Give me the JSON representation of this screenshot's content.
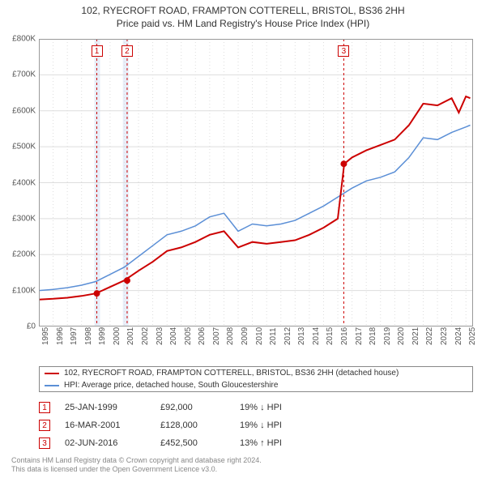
{
  "title_line1": "102, RYECROFT ROAD, FRAMPTON COTTERELL, BRISTOL, BS36 2HH",
  "title_line2": "Price paid vs. HM Land Registry's House Price Index (HPI)",
  "chart": {
    "type": "line",
    "xlim": [
      1995,
      2025.5
    ],
    "ylim": [
      0,
      800000
    ],
    "ytick_step": 100000,
    "yticks": [
      "£0",
      "£100K",
      "£200K",
      "£300K",
      "£400K",
      "£500K",
      "£600K",
      "£700K",
      "£800K"
    ],
    "xticks": [
      1995,
      1996,
      1997,
      1998,
      1999,
      2000,
      2001,
      2002,
      2003,
      2004,
      2005,
      2006,
      2007,
      2008,
      2009,
      2010,
      2011,
      2012,
      2013,
      2014,
      2015,
      2016,
      2017,
      2018,
      2019,
      2020,
      2021,
      2022,
      2023,
      2024,
      2025
    ],
    "background_color": "#ffffff",
    "grid_color": "#dddddd",
    "band_color": "#e8eef9",
    "bands": [
      [
        1998.9,
        1999.3
      ],
      [
        2000.9,
        2001.3
      ]
    ],
    "series": [
      {
        "name": "property",
        "color": "#cc0000",
        "width": 2,
        "x": [
          1995,
          1996,
          1997,
          1998,
          1999,
          2000,
          2001,
          2002,
          2003,
          2004,
          2005,
          2006,
          2007,
          2008,
          2009,
          2010,
          2011,
          2012,
          2013,
          2014,
          2015,
          2016,
          2016.45,
          2017,
          2018,
          2019,
          2020,
          2021,
          2022,
          2023,
          2024,
          2024.5,
          2025,
          2025.3
        ],
        "y": [
          75000,
          77000,
          80000,
          85000,
          92000,
          110000,
          128000,
          155000,
          180000,
          210000,
          220000,
          235000,
          255000,
          265000,
          220000,
          235000,
          230000,
          235000,
          240000,
          255000,
          275000,
          300000,
          452500,
          470000,
          490000,
          505000,
          520000,
          560000,
          620000,
          615000,
          635000,
          595000,
          640000,
          635000
        ]
      },
      {
        "name": "hpi",
        "color": "#5b8fd6",
        "width": 1.5,
        "x": [
          1995,
          1996,
          1997,
          1998,
          1999,
          2000,
          2001,
          2002,
          2003,
          2004,
          2005,
          2006,
          2007,
          2008,
          2009,
          2010,
          2011,
          2012,
          2013,
          2014,
          2015,
          2016,
          2017,
          2018,
          2019,
          2020,
          2021,
          2022,
          2023,
          2024,
          2025,
          2025.3
        ],
        "y": [
          100000,
          103000,
          108000,
          115000,
          125000,
          145000,
          165000,
          195000,
          225000,
          255000,
          265000,
          280000,
          305000,
          315000,
          265000,
          285000,
          280000,
          285000,
          295000,
          315000,
          335000,
          360000,
          385000,
          405000,
          415000,
          430000,
          470000,
          525000,
          520000,
          540000,
          555000,
          560000
        ]
      }
    ],
    "markers": [
      {
        "num": "1",
        "x": 1999.07,
        "y": 92000,
        "color": "#cc0000"
      },
      {
        "num": "2",
        "x": 2001.2,
        "y": 128000,
        "color": "#cc0000"
      },
      {
        "num": "3",
        "x": 2016.42,
        "y": 452500,
        "color": "#cc0000"
      }
    ]
  },
  "legend": [
    {
      "color": "#cc0000",
      "label": "102, RYECROFT ROAD, FRAMPTON COTTERELL, BRISTOL, BS36 2HH (detached house)"
    },
    {
      "color": "#5b8fd6",
      "label": "HPI: Average price, detached house, South Gloucestershire"
    }
  ],
  "events": [
    {
      "num": "1",
      "color": "#cc0000",
      "date": "25-JAN-1999",
      "price": "£92,000",
      "hpi": "19% ↓ HPI"
    },
    {
      "num": "2",
      "color": "#cc0000",
      "date": "16-MAR-2001",
      "price": "£128,000",
      "hpi": "19% ↓ HPI"
    },
    {
      "num": "3",
      "color": "#cc0000",
      "date": "02-JUN-2016",
      "price": "£452,500",
      "hpi": "13% ↑ HPI"
    }
  ],
  "footer_line1": "Contains HM Land Registry data © Crown copyright and database right 2024.",
  "footer_line2": "This data is licensed under the Open Government Licence v3.0."
}
